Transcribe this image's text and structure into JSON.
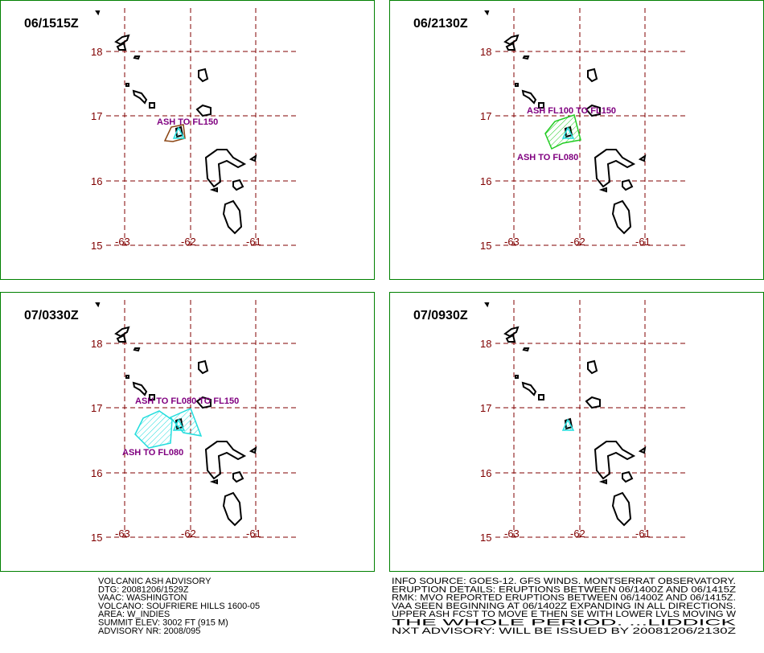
{
  "panels": [
    {
      "time": "06/1515Z",
      "ash_labels": [
        "ASH TO FL150"
      ]
    },
    {
      "time": "06/2130Z",
      "ash_labels": [
        "ASH FL100 TO FL150",
        "ASH TO FL080"
      ]
    },
    {
      "time": "07/0330Z",
      "ash_labels": [
        "ASH TO FL080 TO FL150",
        "ASH TO FL080"
      ]
    },
    {
      "time": "07/0930Z"
    }
  ],
  "lat_labels": [
    "18",
    "17",
    "16",
    "15"
  ],
  "lon_labels": [
    "-63",
    "-62",
    "-61"
  ],
  "advisory_left": [
    "VOLCANIC ASH ADVISORY",
    "DTG: 20081206/1529Z",
    "VAAC: WASHINGTON",
    "VOLCANO: SOUFRIERE HILLS 1600-05",
    "AREA: W_INDIES",
    "SUMMIT ELEV: 3002 FT (915 M)",
    "ADVISORY NR: 2008/095"
  ],
  "advisory_right": [
    "INFO SOURCE: GOES-12. GFS WINDS. MONTSERRAT OBSERVATORY.",
    "ERUPTION DETAILS: ERUPTIONS BETWEEN 06/1400Z AND 06/1415Z",
    "RMK: MVO REPORTED ERUPTIONS BETWEEN 06/1400Z AND 06/1415Z.",
    "VAA SEEN BEGINNING AT 06/1402Z EXPANDING IN ALL DIRECTIONS.",
    "UPPER ASH FCST TO MOVE E THEN SE WITH LOWER LVLS MOVING W",
    "THE WHOLE PERIOD. ...LIDDICK",
    "NXT ADVISORY: WILL BE ISSUED BY 20081206/2130Z"
  ]
}
